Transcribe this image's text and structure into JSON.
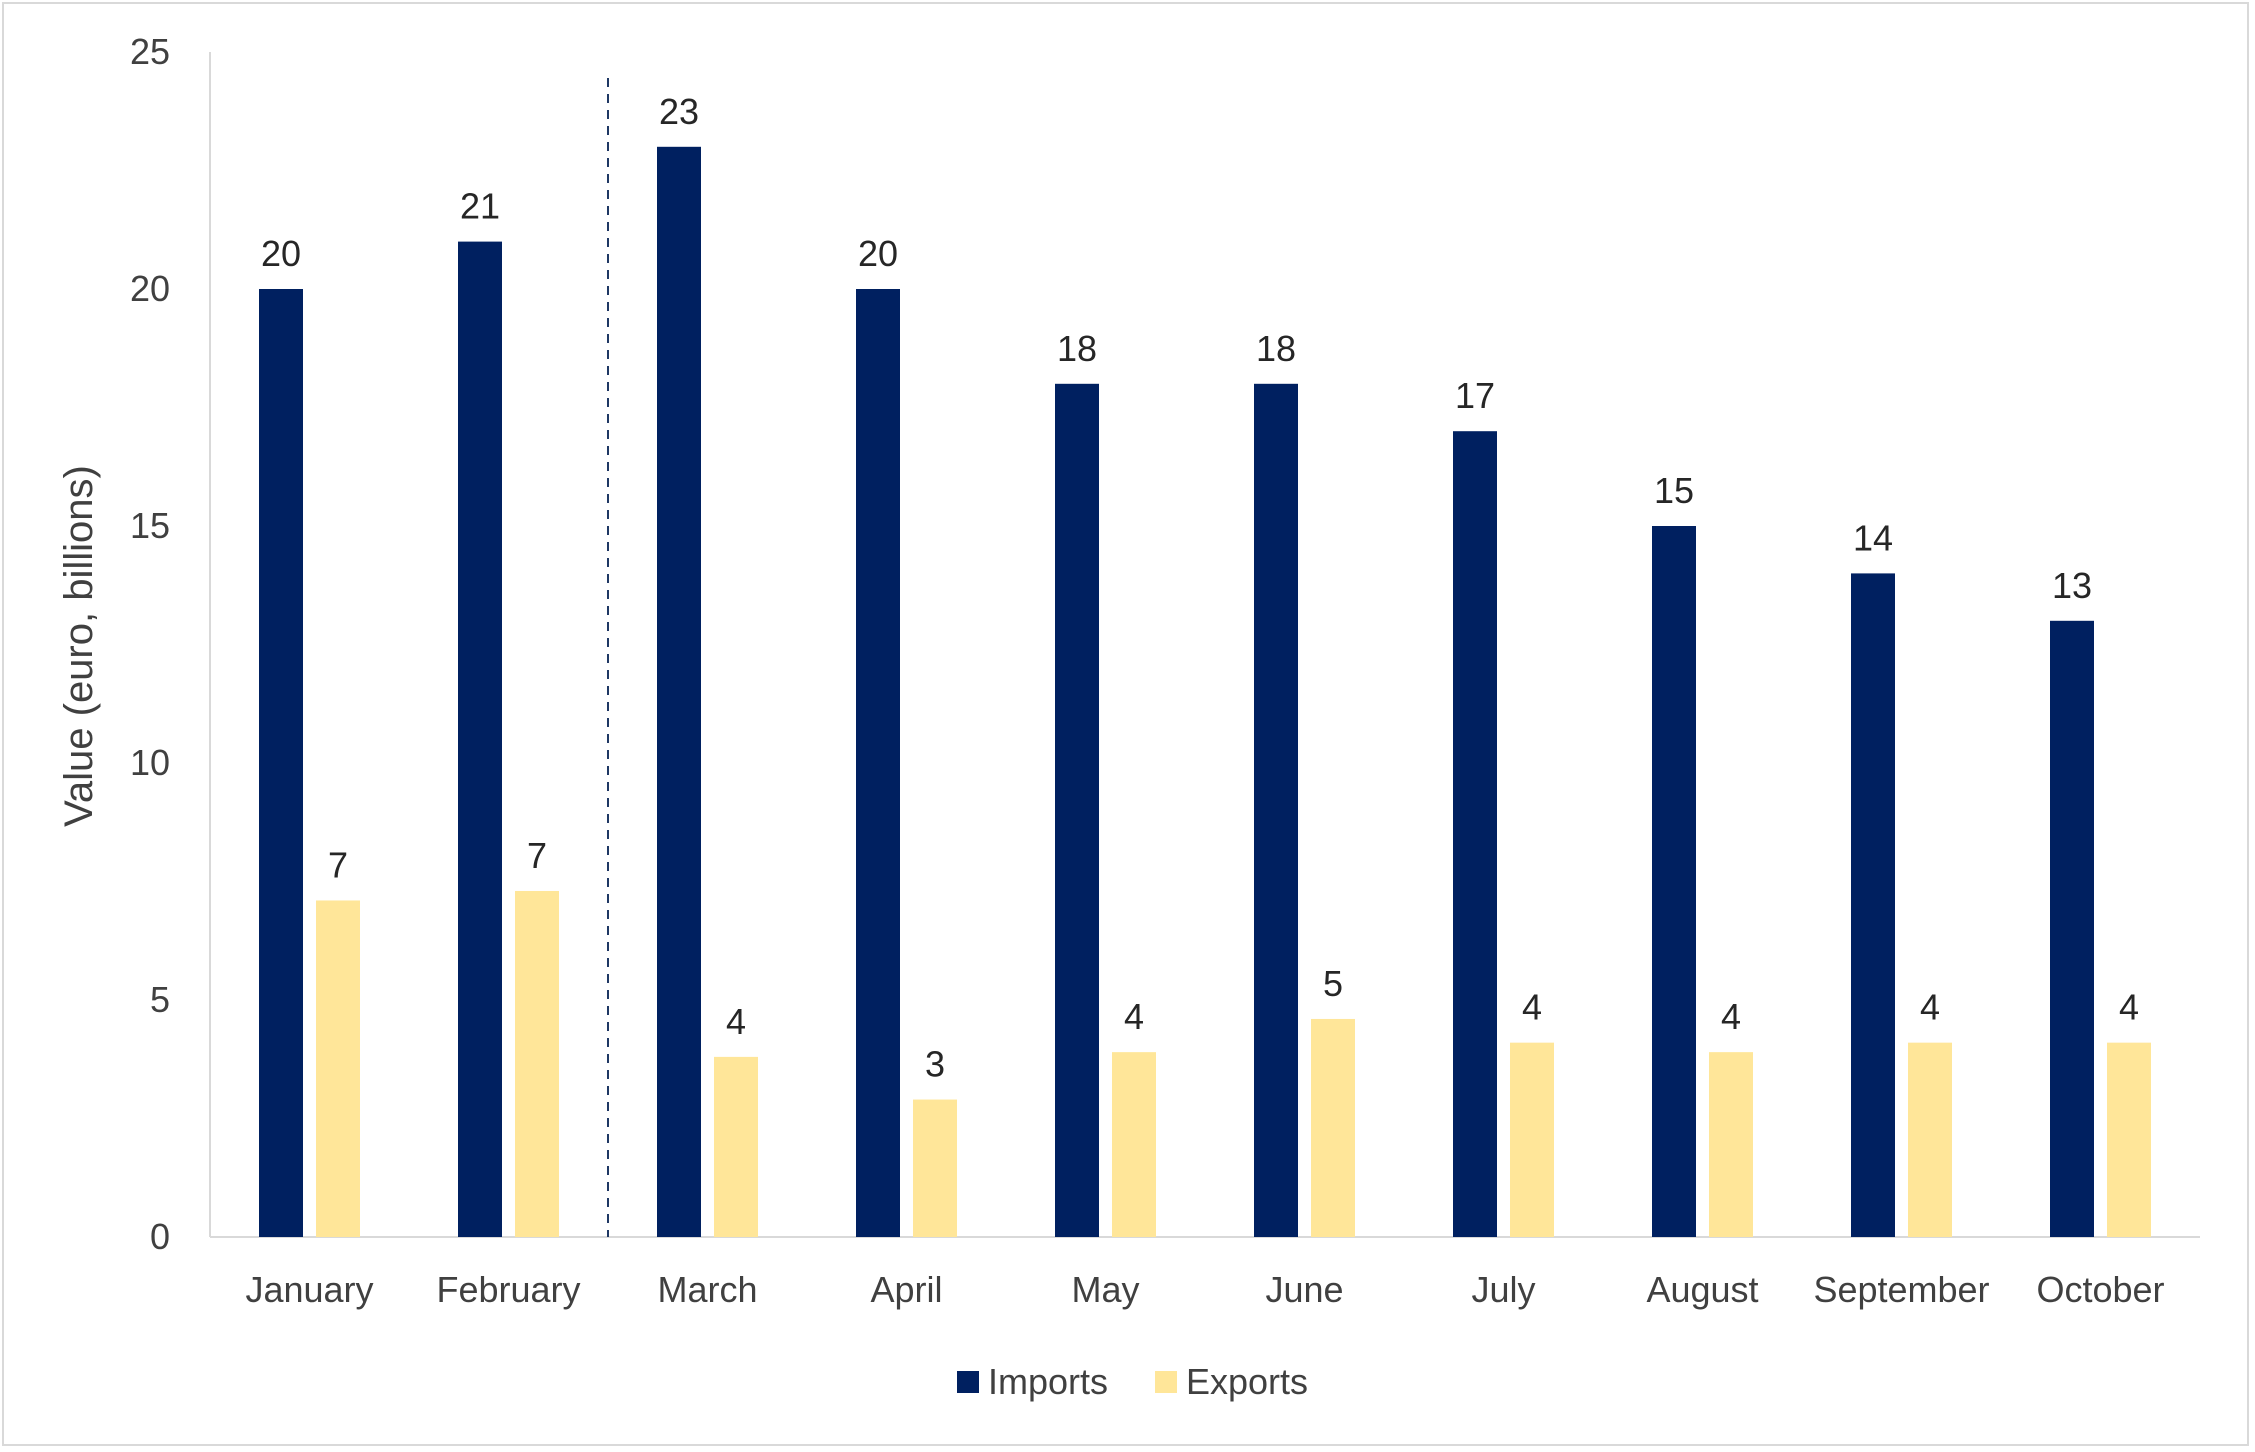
{
  "chart_data": {
    "type": "bar",
    "title": "",
    "xlabel": "",
    "ylabel": "Value (euro, billions)",
    "ylim": [
      0,
      25
    ],
    "yticks": [
      0,
      5,
      10,
      15,
      20,
      25
    ],
    "grid": false,
    "legend_position": "bottom-center",
    "categories": [
      "January",
      "February",
      "March",
      "April",
      "May",
      "June",
      "July",
      "August",
      "September",
      "October"
    ],
    "series": [
      {
        "name": "Imports",
        "color": "#002060",
        "values": [
          20,
          21,
          23,
          20,
          18,
          18,
          17,
          15,
          14,
          13
        ],
        "labels": [
          "20",
          "21",
          "23",
          "20",
          "18",
          "18",
          "17",
          "15",
          "14",
          "13"
        ]
      },
      {
        "name": "Exports",
        "color": "#FFE699",
        "values": [
          7.1,
          7.3,
          3.8,
          2.9,
          3.9,
          4.6,
          4.1,
          3.9,
          4.1,
          4.1
        ],
        "labels": [
          "7",
          "7",
          "4",
          "3",
          "4",
          "5",
          "4",
          "4",
          "4",
          "4"
        ]
      }
    ],
    "annotations": {
      "dashed_divider_between": [
        "February",
        "March"
      ]
    }
  }
}
